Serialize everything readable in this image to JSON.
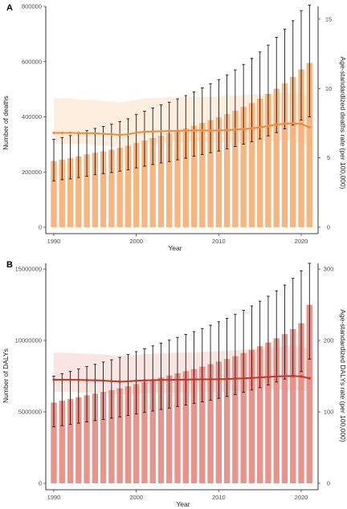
{
  "chart_data": [
    {
      "panel_label": "A",
      "type": "bar",
      "combo": "bar with error bars + line with uncertainty band on secondary axis",
      "xlabel": "Year",
      "ylabel": "Number of deaths",
      "y2label": "Age-standardized deaths rate (per 100,000)",
      "ylim": [
        0,
        800000
      ],
      "y2lim": [
        0,
        15.92
      ],
      "yticks": [
        0,
        200000,
        400000,
        600000,
        800000
      ],
      "ytick_labels": [
        "0",
        "200000",
        "400000",
        "600000",
        "800000"
      ],
      "y2ticks": [
        0,
        5,
        10,
        15
      ],
      "y2tick_labels": [
        "0",
        "5",
        "10",
        "15"
      ],
      "xticks": [
        1990,
        2000,
        2010,
        2020
      ],
      "xtick_labels": [
        "1990",
        "2000",
        "2010",
        "2020"
      ],
      "grid": false,
      "colors": {
        "bar": "#f5b077",
        "line": "#f08a3c",
        "band": "#fdeee0",
        "error": "#000000"
      },
      "x": [
        1990,
        1991,
        1992,
        1993,
        1994,
        1995,
        1996,
        1997,
        1998,
        1999,
        2000,
        2001,
        2002,
        2003,
        2004,
        2005,
        2006,
        2007,
        2008,
        2009,
        2010,
        2011,
        2012,
        2013,
        2014,
        2015,
        2016,
        2017,
        2018,
        2019,
        2020,
        2021
      ],
      "series": [
        {
          "kind": "bar",
          "values": [
            240000,
            245000,
            250000,
            257000,
            264000,
            270000,
            275000,
            281000,
            288000,
            295000,
            305000,
            314000,
            323000,
            332000,
            340000,
            349000,
            358000,
            368000,
            378000,
            388000,
            398000,
            410000,
            422000,
            436000,
            450000,
            466000,
            483000,
            502000,
            522000,
            545000,
            572000,
            595000
          ],
          "error_low": [
            168000,
            172000,
            175000,
            180000,
            185000,
            190000,
            194000,
            198000,
            203000,
            208000,
            215000,
            221000,
            227000,
            233000,
            238000,
            244000,
            250000,
            257000,
            263000,
            270000,
            276000,
            284000,
            292000,
            301000,
            310000,
            320000,
            331000,
            343000,
            356000,
            370000,
            388000,
            400000
          ],
          "error_high": [
            318000,
            325000,
            332000,
            341000,
            350000,
            358000,
            365000,
            373000,
            383000,
            393000,
            408000,
            420000,
            432000,
            443000,
            453000,
            465000,
            477000,
            490000,
            505000,
            520000,
            535000,
            552000,
            570000,
            590000,
            612000,
            635000,
            660000,
            688000,
            718000,
            748000,
            785000,
            805000
          ]
        },
        {
          "kind": "line",
          "axis": "secondary",
          "values": [
            6.8,
            6.8,
            6.8,
            6.79,
            6.78,
            6.77,
            6.74,
            6.7,
            6.66,
            6.7,
            6.82,
            6.88,
            6.9,
            6.92,
            6.94,
            6.95,
            6.97,
            6.98,
            6.98,
            6.97,
            6.98,
            7.0,
            7.04,
            7.08,
            7.12,
            7.2,
            7.3,
            7.4,
            7.46,
            7.5,
            7.45,
            7.2
          ],
          "band_low": [
            6.0,
            6.0,
            6.0,
            6.0,
            6.0,
            5.9,
            5.9,
            5.8,
            5.8,
            5.8,
            5.9,
            6.0,
            6.1,
            6.1,
            6.1,
            6.1,
            6.2,
            6.2,
            6.2,
            6.1,
            6.1,
            6.1,
            6.1,
            6.2,
            6.2,
            6.2,
            6.2,
            6.2,
            6.3,
            6.2,
            6.1,
            5.9
          ],
          "band_high": [
            9.3,
            9.3,
            9.3,
            9.2,
            9.2,
            9.2,
            9.1,
            9.05,
            9.0,
            9.1,
            9.2,
            9.3,
            9.3,
            9.35,
            9.4,
            9.4,
            9.4,
            9.4,
            9.4,
            9.4,
            9.4,
            9.5,
            9.5,
            9.5,
            9.6,
            9.6,
            9.6,
            9.7,
            9.7,
            9.7,
            9.6,
            9.3
          ]
        }
      ]
    },
    {
      "panel_label": "B",
      "type": "bar",
      "combo": "bar with error bars + line with uncertainty band on secondary axis",
      "xlabel": "Year",
      "ylabel": "Number of DALYs",
      "y2label": "Age-standardized DALYs rate (per 100,000)",
      "ylim": [
        0,
        15400000
      ],
      "y2lim": [
        0,
        308
      ],
      "yticks": [
        0,
        5000000,
        10000000,
        15000000
      ],
      "ytick_labels": [
        "0",
        "5000000",
        "10000000",
        "15000000"
      ],
      "y2ticks": [
        0,
        100,
        200,
        300
      ],
      "y2tick_labels": [
        "0",
        "100",
        "200",
        "300"
      ],
      "xticks": [
        1990,
        2000,
        2010,
        2020
      ],
      "xtick_labels": [
        "1990",
        "2000",
        "2010",
        "2020"
      ],
      "grid": false,
      "colors": {
        "bar": "#e48b82",
        "line": "#c0392b",
        "band": "#f9e6e2",
        "error": "#000000"
      },
      "x": [
        1990,
        1991,
        1992,
        1993,
        1994,
        1995,
        1996,
        1997,
        1998,
        1999,
        2000,
        2001,
        2002,
        2003,
        2004,
        2005,
        2006,
        2007,
        2008,
        2009,
        2010,
        2011,
        2012,
        2013,
        2014,
        2015,
        2016,
        2017,
        2018,
        2019,
        2020,
        2021
      ],
      "series": [
        {
          "kind": "bar",
          "values": [
            5650000,
            5780000,
            5900000,
            6030000,
            6160000,
            6280000,
            6400000,
            6520000,
            6650000,
            6790000,
            6950000,
            7100000,
            7250000,
            7400000,
            7550000,
            7700000,
            7850000,
            8000000,
            8170000,
            8340000,
            8520000,
            8700000,
            8900000,
            9120000,
            9350000,
            9600000,
            9860000,
            10150000,
            10450000,
            10800000,
            11200000,
            12500000
          ],
          "error_low": [
            3950000,
            4040000,
            4120000,
            4210000,
            4300000,
            4390000,
            4470000,
            4560000,
            4650000,
            4740000,
            4850000,
            4960000,
            5060000,
            5170000,
            5270000,
            5380000,
            5480000,
            5590000,
            5700000,
            5820000,
            5950000,
            6080000,
            6210000,
            6370000,
            6530000,
            6700000,
            6890000,
            7090000,
            7300000,
            7550000,
            7820000,
            8700000
          ],
          "error_high": [
            7500000,
            7670000,
            7830000,
            8000000,
            8170000,
            8330000,
            8490000,
            8650000,
            8820000,
            9010000,
            9220000,
            9420000,
            9620000,
            9820000,
            10020000,
            10220000,
            10420000,
            10620000,
            10840000,
            11070000,
            11310000,
            11550000,
            11820000,
            12110000,
            12420000,
            12750000,
            13100000,
            13480000,
            13880000,
            14350000,
            14880000,
            15400000
          ]
        },
        {
          "kind": "line",
          "axis": "secondary",
          "values": [
            145,
            145,
            145,
            144.8,
            144.5,
            144.3,
            143.8,
            143,
            142.4,
            142.8,
            143.6,
            144.2,
            144.5,
            144.7,
            144.9,
            145,
            145.2,
            145.4,
            145.5,
            145.5,
            145.7,
            146,
            146.5,
            147,
            147.6,
            148.3,
            149,
            149.6,
            150,
            150.2,
            149.6,
            147
          ],
          "band_low": [
            128,
            128,
            128,
            127.5,
            127,
            126.5,
            126,
            125,
            124.5,
            125,
            126,
            126.5,
            127,
            127,
            127,
            127.5,
            127.5,
            128,
            128,
            128,
            128,
            128.5,
            129,
            129,
            129.5,
            130,
            130.5,
            131,
            131,
            131,
            130,
            128
          ],
          "band_high": [
            183,
            183,
            182.5,
            182,
            181.5,
            181,
            180.5,
            179,
            178,
            179,
            180,
            181,
            181.5,
            182,
            182.5,
            183,
            183,
            183.5,
            184,
            184.5,
            185,
            185.5,
            186,
            187,
            188,
            189,
            190,
            191,
            191.5,
            192,
            191,
            188
          ]
        }
      ]
    }
  ]
}
